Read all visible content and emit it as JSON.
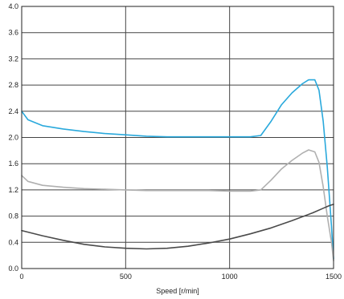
{
  "chart_data": {
    "type": "line",
    "title": "",
    "xlabel": "Speed [r/min]",
    "ylabel": "",
    "xlim": [
      0,
      1500
    ],
    "ylim": [
      0,
      4.0
    ],
    "x_ticks": [
      0,
      500,
      1000,
      1500
    ],
    "x_tick_labels": [
      "0",
      "500",
      "1000",
      "1500"
    ],
    "y_ticks": [
      0,
      0.4,
      0.8,
      1.2,
      1.6,
      2.0,
      2.4,
      2.8,
      3.2,
      3.6,
      4.0
    ],
    "y_tick_labels": [
      "0.0",
      "0.4",
      "0.8",
      "1.2",
      "1.6",
      "2.0",
      "2.4",
      "2.8",
      "3.2",
      "3.6",
      "4.0"
    ],
    "grid": true,
    "legend": "none",
    "colors": {
      "frame": "#222222",
      "grid": "#444444"
    },
    "series": [
      {
        "color": "#2aa9dc",
        "x": [
          0,
          30,
          100,
          200,
          300,
          400,
          500,
          600,
          700,
          800,
          900,
          1000,
          1100,
          1150,
          1200,
          1250,
          1300,
          1350,
          1380,
          1410,
          1430,
          1450,
          1470,
          1490,
          1500
        ],
        "y": [
          2.4,
          2.27,
          2.18,
          2.13,
          2.09,
          2.06,
          2.04,
          2.02,
          2.01,
          2.01,
          2.01,
          2.01,
          2.01,
          2.03,
          2.25,
          2.5,
          2.68,
          2.82,
          2.88,
          2.88,
          2.72,
          2.25,
          1.55,
          0.65,
          0.15
        ]
      },
      {
        "color": "#b0b0b0",
        "x": [
          0,
          30,
          100,
          200,
          300,
          400,
          500,
          600,
          700,
          800,
          900,
          1000,
          1100,
          1150,
          1200,
          1250,
          1300,
          1350,
          1380,
          1410,
          1430,
          1450,
          1470,
          1490,
          1500
        ],
        "y": [
          1.42,
          1.33,
          1.27,
          1.24,
          1.22,
          1.21,
          1.2,
          1.19,
          1.19,
          1.19,
          1.19,
          1.18,
          1.18,
          1.2,
          1.35,
          1.52,
          1.65,
          1.76,
          1.81,
          1.78,
          1.62,
          1.25,
          0.8,
          0.4,
          0.12
        ]
      },
      {
        "color": "#4a4a4a",
        "x": [
          0,
          100,
          200,
          300,
          400,
          500,
          600,
          700,
          800,
          900,
          1000,
          1100,
          1200,
          1300,
          1400,
          1450,
          1480,
          1500
        ],
        "y": [
          0.58,
          0.5,
          0.43,
          0.37,
          0.33,
          0.31,
          0.3,
          0.31,
          0.34,
          0.39,
          0.45,
          0.53,
          0.62,
          0.73,
          0.85,
          0.92,
          0.96,
          0.98
        ]
      }
    ]
  }
}
